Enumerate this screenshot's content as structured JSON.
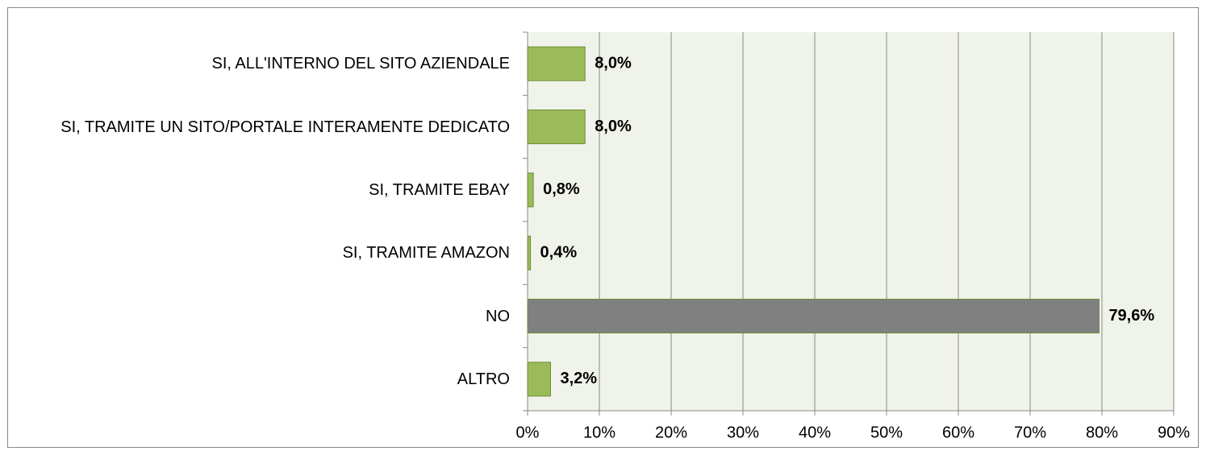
{
  "chart_data": {
    "type": "bar",
    "orientation": "horizontal",
    "categories": [
      "SI, ALL'INTERNO DEL SITO AZIENDALE",
      "SI, TRAMITE UN SITO/PORTALE INTERAMENTE DEDICATO",
      "SI, TRAMITE EBAY",
      "SI, TRAMITE AMAZON",
      "NO",
      "ALTRO"
    ],
    "values": [
      8.0,
      8.0,
      0.8,
      0.4,
      79.6,
      3.2
    ],
    "value_labels": [
      "8,0%",
      "8,0%",
      "0,8%",
      "0,4%",
      "79,6%",
      "3,2%"
    ],
    "colors": [
      "#9bbb59",
      "#9bbb59",
      "#9bbb59",
      "#9bbb59",
      "#808080",
      "#9bbb59"
    ],
    "xlim": [
      0,
      90
    ],
    "xticks": [
      {
        "value": 0,
        "label": "0%"
      },
      {
        "value": 10,
        "label": "10%"
      },
      {
        "value": 20,
        "label": "20%"
      },
      {
        "value": 30,
        "label": "30%"
      },
      {
        "value": 40,
        "label": "40%"
      },
      {
        "value": 50,
        "label": "50%"
      },
      {
        "value": 60,
        "label": "60%"
      },
      {
        "value": 70,
        "label": "70%"
      },
      {
        "value": 80,
        "label": "80%"
      },
      {
        "value": 90,
        "label": "90%"
      }
    ],
    "grid": true
  }
}
